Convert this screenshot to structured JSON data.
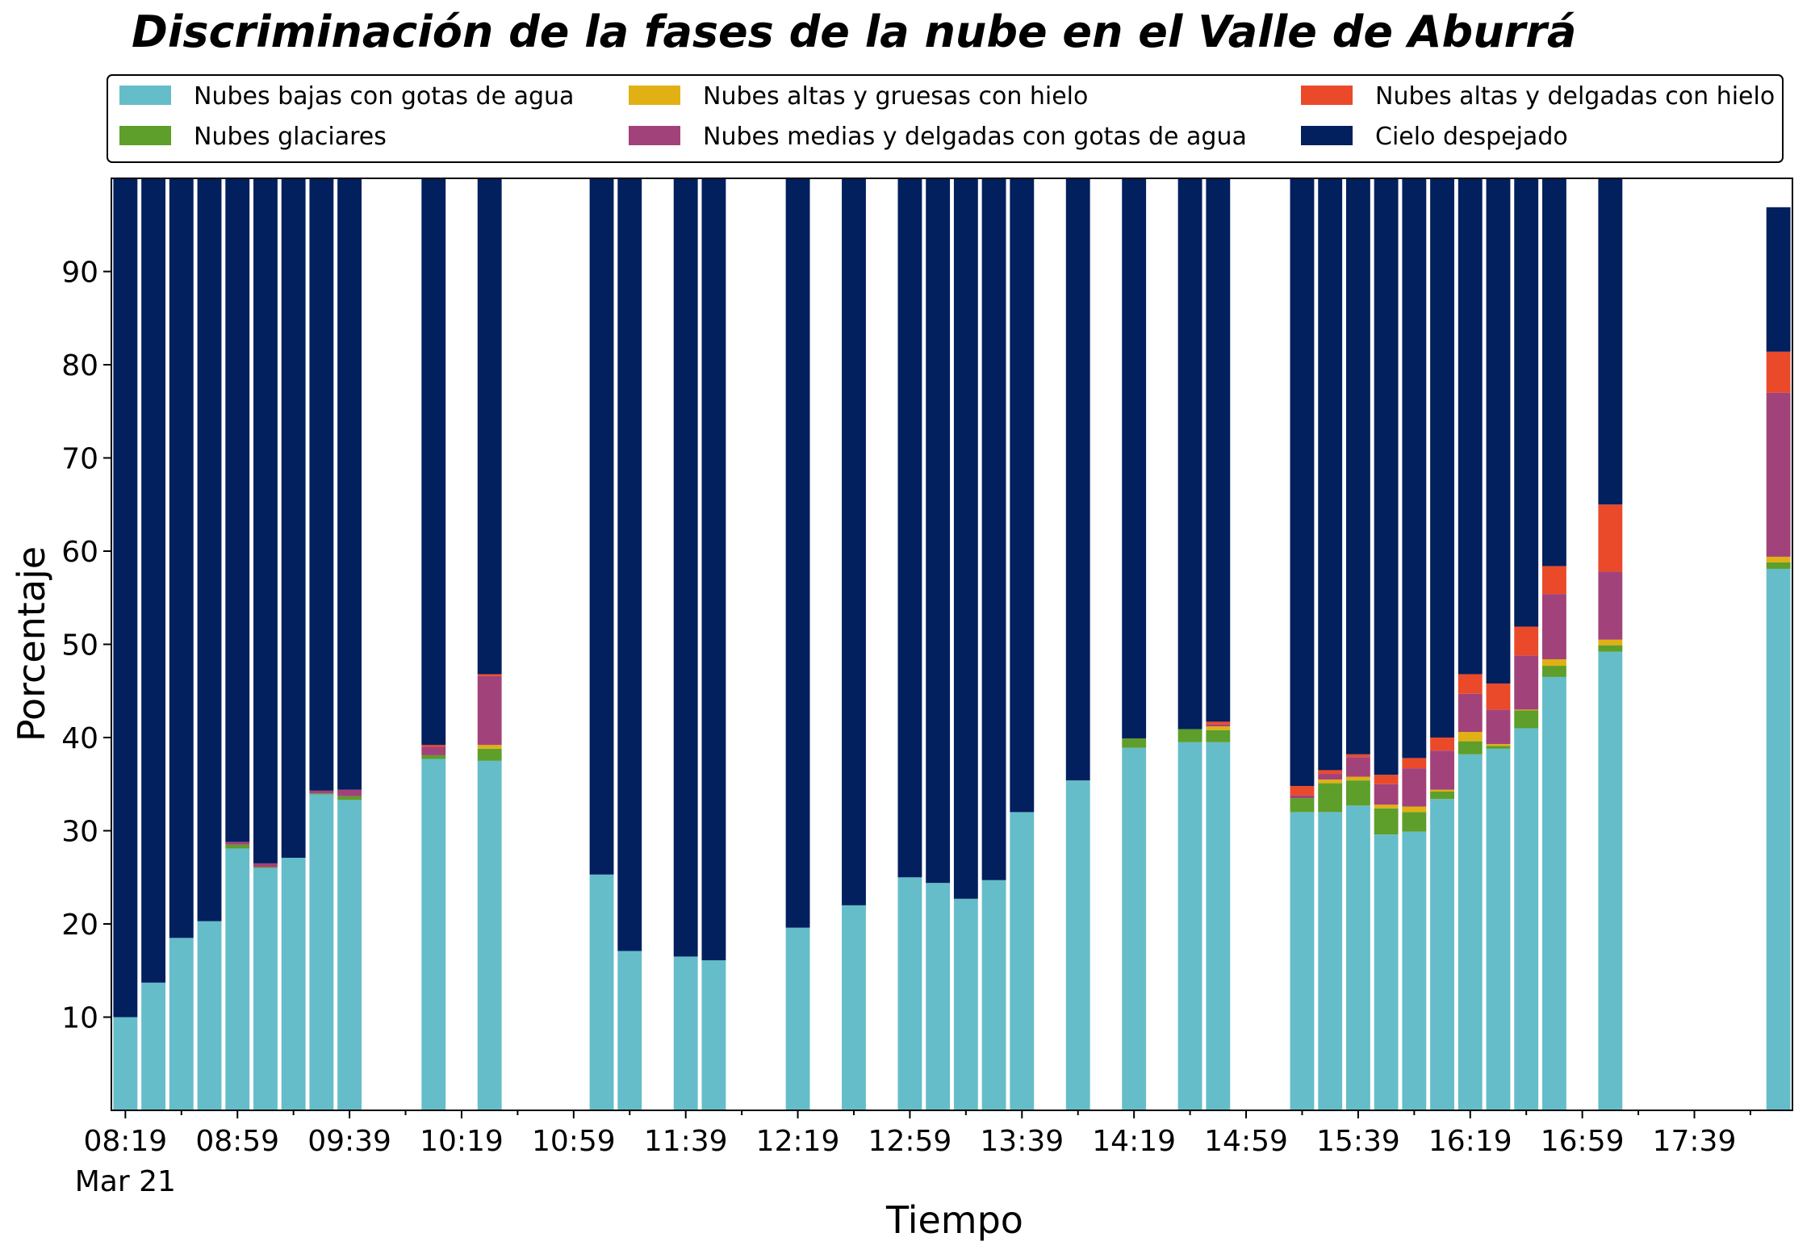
{
  "chart_data": {
    "type": "bar",
    "stacked": true,
    "title": "Discriminación de la fases de la nube en el Valle de Aburrá",
    "xlabel": "Tiempo",
    "ylabel": "Porcentaje",
    "ylim": [
      0,
      100
    ],
    "yticks": [
      10,
      20,
      30,
      40,
      50,
      60,
      70,
      80,
      90
    ],
    "xlim": [
      "08:14",
      "18:14"
    ],
    "xticks": [
      "08:19",
      "08:59",
      "09:39",
      "10:19",
      "10:59",
      "11:39",
      "12:19",
      "12:59",
      "13:39",
      "14:19",
      "14:59",
      "15:39",
      "16:19",
      "16:59",
      "17:39"
    ],
    "xtick_date_label": "Mar 21",
    "grid": false,
    "legend_position": "top",
    "colors": {
      "low": "#65BDC9",
      "glacial": "#5E9E2A",
      "high_thick": "#E0B015",
      "mid_thin": "#A2427A",
      "high_thin": "#EA4A2A",
      "clear": "#021F5E"
    },
    "series": [
      {
        "key": "low",
        "name": "Nubes bajas con gotas de agua"
      },
      {
        "key": "glacial",
        "name": "Nubes glaciares"
      },
      {
        "key": "high_thick",
        "name": "Nubes altas y gruesas con hielo"
      },
      {
        "key": "mid_thin",
        "name": "Nubes medias y delgadas con gotas de agua"
      },
      {
        "key": "high_thin",
        "name": "Nubes altas y delgadas con hielo"
      },
      {
        "key": "clear",
        "name": "Cielo despejado"
      }
    ],
    "bars": [
      {
        "time": "08:19",
        "low": 10.0,
        "glacial": 0,
        "high_thick": 0,
        "mid_thin": 0,
        "high_thin": 0,
        "clear": 90.0
      },
      {
        "time": "08:29",
        "low": 13.7,
        "glacial": 0,
        "high_thick": 0,
        "mid_thin": 0,
        "high_thin": 0,
        "clear": 86.3
      },
      {
        "time": "08:39",
        "low": 18.5,
        "glacial": 0,
        "high_thick": 0,
        "mid_thin": 0,
        "high_thin": 0,
        "clear": 81.5
      },
      {
        "time": "08:49",
        "low": 20.3,
        "glacial": 0,
        "high_thick": 0,
        "mid_thin": 0,
        "high_thin": 0,
        "clear": 79.7
      },
      {
        "time": "08:59",
        "low": 28.1,
        "glacial": 0.4,
        "high_thick": 0,
        "mid_thin": 0.3,
        "high_thin": 0,
        "clear": 71.2
      },
      {
        "time": "09:09",
        "low": 26.0,
        "glacial": 0.1,
        "high_thick": 0,
        "mid_thin": 0.4,
        "high_thin": 0,
        "clear": 73.5
      },
      {
        "time": "09:19",
        "low": 27.1,
        "glacial": 0,
        "high_thick": 0,
        "mid_thin": 0,
        "high_thin": 0,
        "clear": 72.9
      },
      {
        "time": "09:29",
        "low": 33.9,
        "glacial": 0.1,
        "high_thick": 0,
        "mid_thin": 0.3,
        "high_thin": 0,
        "clear": 65.7
      },
      {
        "time": "09:39",
        "low": 33.3,
        "glacial": 0.4,
        "high_thick": 0,
        "mid_thin": 0.7,
        "high_thin": 0,
        "clear": 65.6
      },
      {
        "time": "10:09",
        "low": 37.7,
        "glacial": 0.4,
        "high_thick": 0,
        "mid_thin": 0.9,
        "high_thin": 0.2,
        "clear": 60.8
      },
      {
        "time": "10:29",
        "low": 37.5,
        "glacial": 1.3,
        "high_thick": 0.4,
        "mid_thin": 7.4,
        "high_thin": 0.2,
        "clear": 53.2
      },
      {
        "time": "11:09",
        "low": 25.3,
        "glacial": 0,
        "high_thick": 0,
        "mid_thin": 0,
        "high_thin": 0,
        "clear": 74.7
      },
      {
        "time": "11:19",
        "low": 17.1,
        "glacial": 0,
        "high_thick": 0,
        "mid_thin": 0,
        "high_thin": 0,
        "clear": 82.9
      },
      {
        "time": "11:39",
        "low": 16.5,
        "glacial": 0,
        "high_thick": 0,
        "mid_thin": 0,
        "high_thin": 0,
        "clear": 83.5
      },
      {
        "time": "11:49",
        "low": 16.1,
        "glacial": 0,
        "high_thick": 0,
        "mid_thin": 0,
        "high_thin": 0,
        "clear": 83.9
      },
      {
        "time": "12:19",
        "low": 19.6,
        "glacial": 0,
        "high_thick": 0,
        "mid_thin": 0,
        "high_thin": 0,
        "clear": 80.4
      },
      {
        "time": "12:39",
        "low": 22.0,
        "glacial": 0,
        "high_thick": 0,
        "mid_thin": 0,
        "high_thin": 0,
        "clear": 78.0
      },
      {
        "time": "12:59",
        "low": 25.0,
        "glacial": 0,
        "high_thick": 0,
        "mid_thin": 0,
        "high_thin": 0,
        "clear": 75.0
      },
      {
        "time": "13:09",
        "low": 24.4,
        "glacial": 0,
        "high_thick": 0,
        "mid_thin": 0,
        "high_thin": 0,
        "clear": 75.6
      },
      {
        "time": "13:19",
        "low": 22.7,
        "glacial": 0,
        "high_thick": 0,
        "mid_thin": 0,
        "high_thin": 0,
        "clear": 77.3
      },
      {
        "time": "13:29",
        "low": 24.7,
        "glacial": 0,
        "high_thick": 0,
        "mid_thin": 0,
        "high_thin": 0,
        "clear": 75.3
      },
      {
        "time": "13:39",
        "low": 32.0,
        "glacial": 0,
        "high_thick": 0,
        "mid_thin": 0,
        "high_thin": 0,
        "clear": 68.0
      },
      {
        "time": "13:59",
        "low": 35.4,
        "glacial": 0,
        "high_thick": 0,
        "mid_thin": 0,
        "high_thin": 0,
        "clear": 64.6
      },
      {
        "time": "14:19",
        "low": 38.9,
        "glacial": 1.0,
        "high_thick": 0,
        "mid_thin": 0,
        "high_thin": 0,
        "clear": 60.1
      },
      {
        "time": "14:39",
        "low": 39.5,
        "glacial": 1.4,
        "high_thick": 0,
        "mid_thin": 0,
        "high_thin": 0,
        "clear": 59.1
      },
      {
        "time": "14:49",
        "low": 39.5,
        "glacial": 1.3,
        "high_thick": 0.4,
        "mid_thin": 0.2,
        "high_thin": 0.3,
        "clear": 58.3
      },
      {
        "time": "15:19",
        "low": 32.0,
        "glacial": 1.5,
        "high_thick": 0,
        "mid_thin": 0.3,
        "high_thin": 1.0,
        "clear": 65.2
      },
      {
        "time": "15:29",
        "low": 32.0,
        "glacial": 3.1,
        "high_thick": 0.4,
        "mid_thin": 0.6,
        "high_thin": 0.4,
        "clear": 63.5
      },
      {
        "time": "15:39",
        "low": 32.7,
        "glacial": 2.7,
        "high_thick": 0.4,
        "mid_thin": 2.1,
        "high_thin": 0.3,
        "clear": 61.8
      },
      {
        "time": "15:49",
        "low": 29.6,
        "glacial": 2.8,
        "high_thick": 0.4,
        "mid_thin": 2.2,
        "high_thin": 1.0,
        "clear": 64.0
      },
      {
        "time": "15:59",
        "low": 29.9,
        "glacial": 2.1,
        "high_thick": 0.6,
        "mid_thin": 4.1,
        "high_thin": 1.1,
        "clear": 62.2
      },
      {
        "time": "16:09",
        "low": 33.4,
        "glacial": 0.8,
        "high_thick": 0.2,
        "mid_thin": 4.2,
        "high_thin": 1.4,
        "clear": 60.0
      },
      {
        "time": "16:19",
        "low": 38.2,
        "glacial": 1.4,
        "high_thick": 1.0,
        "mid_thin": 4.1,
        "high_thin": 2.1,
        "clear": 53.2
      },
      {
        "time": "16:29",
        "low": 38.8,
        "glacial": 0.3,
        "high_thick": 0.2,
        "mid_thin": 3.7,
        "high_thin": 2.8,
        "clear": 54.2
      },
      {
        "time": "16:39",
        "low": 41.0,
        "glacial": 1.9,
        "high_thick": 0.1,
        "mid_thin": 5.8,
        "high_thin": 3.1,
        "clear": 48.1
      },
      {
        "time": "16:49",
        "low": 46.5,
        "glacial": 1.2,
        "high_thick": 0.7,
        "mid_thin": 7.0,
        "high_thin": 3.0,
        "clear": 41.6
      },
      {
        "time": "17:09",
        "low": 49.2,
        "glacial": 0.7,
        "high_thick": 0.6,
        "mid_thin": 7.3,
        "high_thin": 7.2,
        "clear": 35.0
      },
      {
        "time": "18:09",
        "low": 58.1,
        "glacial": 0.7,
        "high_thick": 0.6,
        "mid_thin": 17.6,
        "high_thin": 4.4,
        "clear": 15.5
      }
    ]
  }
}
